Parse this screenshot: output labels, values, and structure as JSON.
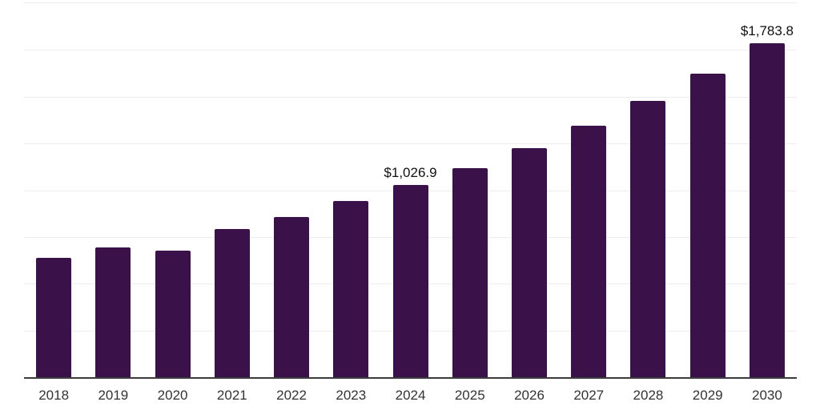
{
  "chart": {
    "background_color": "#ffffff",
    "bar_color": "#3a1149",
    "axis_line_color": "#3d3d3d",
    "gridline_color": "#ededed",
    "tick_label_color": "#333333",
    "data_label_color": "#111111"
  },
  "chart_data": {
    "type": "bar",
    "title": "",
    "xlabel": "",
    "ylabel": "",
    "categories": [
      "2018",
      "2019",
      "2020",
      "2021",
      "2022",
      "2023",
      "2024",
      "2025",
      "2026",
      "2027",
      "2028",
      "2029",
      "2030"
    ],
    "values": [
      639,
      694,
      678,
      792,
      856,
      941,
      1026.9,
      1116,
      1227,
      1346,
      1478,
      1623,
      1783.8
    ],
    "data_labels": {
      "2024": "$1,026.9",
      "2030": "$1,783.8"
    },
    "ylim": [
      0,
      2000
    ],
    "gridline_step": 250,
    "grid": true,
    "y_axis_tick_labels_visible": false,
    "legend_position": "none"
  }
}
